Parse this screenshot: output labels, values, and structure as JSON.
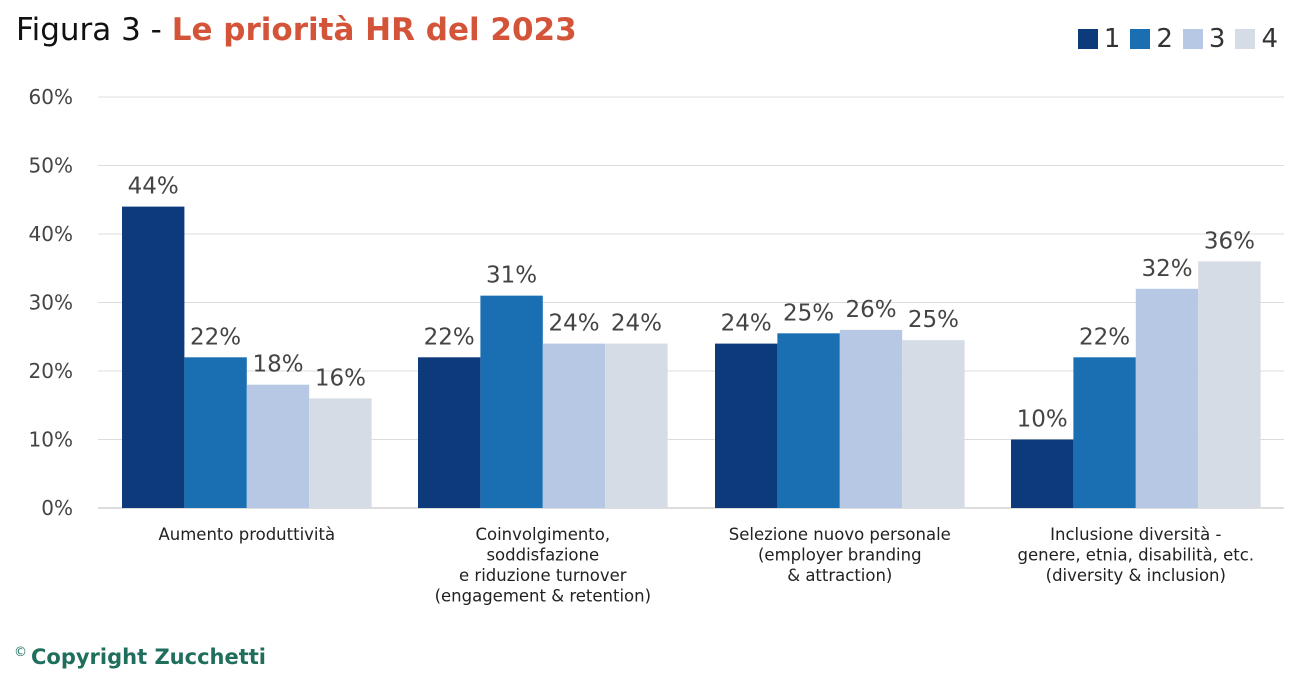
{
  "title": {
    "prefix": "Figura 3 - ",
    "highlight": "Le priorità HR del 2023"
  },
  "copyright": {
    "symbol": "©",
    "text": "Copyright Zucchetti"
  },
  "colors": {
    "title_accent": "#d4543a",
    "copyright": "#1f6f5c"
  },
  "chart_data": {
    "type": "bar",
    "title": "Le priorità HR del 2023",
    "xlabel": "",
    "ylabel": "",
    "ylim": [
      0,
      60
    ],
    "yticks": [
      "0%",
      "10%",
      "20%",
      "30%",
      "40%",
      "50%",
      "60%"
    ],
    "grid": true,
    "legend_position": "top-right",
    "categories": [
      [
        "Aumento produttività"
      ],
      [
        "Coinvolgimento,",
        "soddisfazione",
        "e riduzione turnover",
        "(engagement & retention)"
      ],
      [
        "Selezione nuovo personale",
        "(employer branding",
        "& attraction)"
      ],
      [
        "Inclusione diversità -",
        "genere, etnia, disabilità, etc.",
        "(diversity & inclusion)"
      ]
    ],
    "series": [
      {
        "name": "1",
        "color": "#0d3a7a",
        "values": [
          44,
          22,
          24,
          10
        ],
        "labels": [
          "44%",
          "22%",
          "24%",
          "10%"
        ]
      },
      {
        "name": "2",
        "color": "#1a6fb3",
        "values": [
          22,
          31,
          25.5,
          22
        ],
        "labels": [
          "22%",
          "31%",
          "25%",
          "22%"
        ]
      },
      {
        "name": "3",
        "color": "#b7c8e4",
        "values": [
          18,
          24,
          26,
          32
        ],
        "labels": [
          "18%",
          "24%",
          "26%",
          "32%"
        ]
      },
      {
        "name": "4",
        "color": "#d6dce5",
        "values": [
          16,
          24,
          24.5,
          36
        ],
        "labels": [
          "16%",
          "24%",
          "25%",
          "36%"
        ]
      }
    ]
  }
}
